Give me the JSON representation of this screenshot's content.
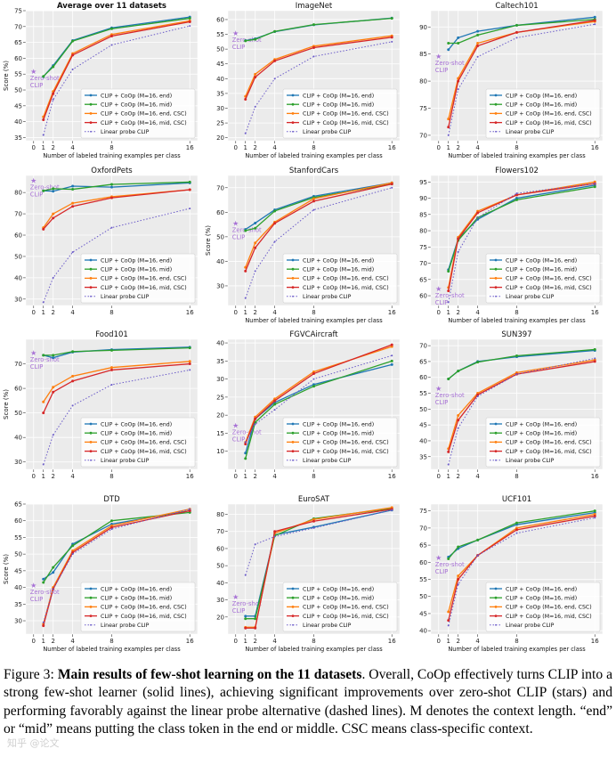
{
  "figure": {
    "caption_label": "Figure 3:",
    "caption_bold": "Main results of few-shot learning on the 11 datasets",
    "caption_rest": ". Overall, CoOp effectively turns CLIP into a strong few-shot learner (solid lines), achieving significant improvements over zero-shot CLIP (stars) and performing favorably against the linear probe alternative (dashed lines). M denotes the context length. “end” or “mid” means putting the class token in the end or middle. CSC means class-specific context.",
    "watermark": "知乎 @论文"
  },
  "colors": {
    "end": "#1f77b4",
    "mid": "#2ca02c",
    "end_csc": "#ff7f0e",
    "mid_csc": "#d62728",
    "linear": "#6b5bc9",
    "zeroshot": "#a872d6",
    "panel_bg": "#ebebeb"
  },
  "chart_data": [
    {
      "type": "line",
      "title": "Average over 11 datasets",
      "xlabel": "Number of labeled training examples per class",
      "ylabel": "Score (%)",
      "x": [
        1,
        2,
        4,
        8,
        16
      ],
      "xticks": [
        0,
        1,
        2,
        4,
        8,
        16
      ],
      "ylim": [
        34,
        75
      ],
      "yticks": [
        35,
        40,
        45,
        50,
        55,
        60,
        65,
        70,
        75
      ],
      "zero_shot": {
        "label": "Zero-shot CLIP",
        "value": 55.9
      },
      "series": [
        {
          "name": "CLIP + CoOp (M=16, end)",
          "values": [
            54.2,
            57.7,
            65.6,
            69.6,
            73.0
          ]
        },
        {
          "name": "CLIP + CoOp (M=16, mid)",
          "values": [
            54.3,
            57.3,
            65.4,
            69.3,
            72.6
          ]
        },
        {
          "name": "CLIP + CoOp (M=16, end, CSC)",
          "values": [
            41.5,
            49.5,
            61.5,
            67.5,
            71.8
          ]
        },
        {
          "name": "CLIP + CoOp (M=16, mid, CSC)",
          "values": [
            40.6,
            48.8,
            61.0,
            67.0,
            71.5
          ]
        },
        {
          "name": "Linear probe CLIP",
          "values": [
            35.8,
            47.0,
            56.5,
            64.2,
            70.2
          ]
        }
      ]
    },
    {
      "type": "line",
      "title": "ImageNet",
      "xlabel": "Number of labeled training examples per class",
      "ylabel": "",
      "x": [
        1,
        2,
        4,
        8,
        16
      ],
      "xticks": [
        0,
        1,
        2,
        4,
        8,
        16
      ],
      "ylim": [
        19,
        63
      ],
      "yticks": [
        20,
        25,
        30,
        35,
        40,
        45,
        50,
        55,
        60
      ],
      "zero_shot": {
        "label": "Zero-shot CLIP",
        "value": 55.4
      },
      "series": [
        {
          "name": "CLIP + CoOp (M=16, end)",
          "values": [
            52.9,
            53.5,
            55.9,
            58.2,
            60.5
          ]
        },
        {
          "name": "CLIP + CoOp (M=16, mid)",
          "values": [
            52.8,
            53.3,
            56.0,
            58.3,
            60.4
          ]
        },
        {
          "name": "CLIP + CoOp (M=16, end, CSC)",
          "values": [
            34.0,
            41.5,
            46.5,
            51.0,
            54.5
          ]
        },
        {
          "name": "CLIP + CoOp (M=16, mid, CSC)",
          "values": [
            33.0,
            40.5,
            46.0,
            50.5,
            54.0
          ]
        },
        {
          "name": "Linear probe CLIP",
          "values": [
            21.5,
            30.5,
            40.0,
            47.5,
            52.5
          ]
        }
      ]
    },
    {
      "type": "line",
      "title": "Caltech101",
      "xlabel": "Number of labeled training examples per class",
      "ylabel": "",
      "x": [
        1,
        2,
        4,
        8,
        16
      ],
      "xticks": [
        0,
        1,
        2,
        4,
        8,
        16
      ],
      "ylim": [
        69,
        93
      ],
      "yticks": [
        70,
        75,
        80,
        85,
        90
      ],
      "zero_shot": {
        "label": "Zero-shot CLIP",
        "value": 84.6
      },
      "series": [
        {
          "name": "CLIP + CoOp (M=16, end)",
          "values": [
            85.8,
            88.0,
            89.2,
            90.3,
            91.8
          ]
        },
        {
          "name": "CLIP + CoOp (M=16, mid)",
          "values": [
            87.0,
            87.0,
            88.5,
            90.3,
            91.4
          ]
        },
        {
          "name": "CLIP + CoOp (M=16, end, CSC)",
          "values": [
            73.0,
            80.5,
            87.0,
            89.0,
            91.0
          ]
        },
        {
          "name": "CLIP + CoOp (M=16, mid, CSC)",
          "values": [
            71.5,
            80.0,
            86.5,
            89.0,
            91.2
          ]
        },
        {
          "name": "Linear probe CLIP",
          "values": [
            70.0,
            78.5,
            84.5,
            88.0,
            90.5
          ]
        }
      ]
    },
    {
      "type": "line",
      "title": "OxfordPets",
      "xlabel": "",
      "ylabel": "",
      "x": [
        1,
        2,
        4,
        8,
        16
      ],
      "xticks": [
        0,
        1,
        2,
        4,
        8,
        16
      ],
      "ylim": [
        27,
        88
      ],
      "yticks": [
        30,
        40,
        50,
        60,
        70,
        80
      ],
      "zero_shot": {
        "label": "Zero-shot CLIP",
        "value": 85.8
      },
      "series": [
        {
          "name": "CLIP + CoOp (M=16, end)",
          "values": [
            80.8,
            80.6,
            83.0,
            82.5,
            84.5
          ]
        },
        {
          "name": "CLIP + CoOp (M=16, mid)",
          "values": [
            80.8,
            81.8,
            81.5,
            83.8,
            84.9
          ]
        },
        {
          "name": "CLIP + CoOp (M=16, end, CSC)",
          "values": [
            63.5,
            70.0,
            75.0,
            78.0,
            81.3
          ]
        },
        {
          "name": "CLIP + CoOp (M=16, mid, CSC)",
          "values": [
            62.8,
            68.0,
            73.5,
            77.5,
            81.3
          ]
        },
        {
          "name": "Linear probe CLIP",
          "values": [
            28.5,
            40.0,
            52.0,
            63.5,
            72.5
          ]
        }
      ]
    },
    {
      "type": "line",
      "title": "StanfordCars",
      "xlabel": "Number of labeled training examples per class",
      "ylabel": "Score (%)",
      "x": [
        1,
        2,
        4,
        8,
        16
      ],
      "xticks": [
        0,
        1,
        2,
        4,
        8,
        16
      ],
      "ylim": [
        22,
        75
      ],
      "yticks": [
        30,
        40,
        50,
        60,
        70
      ],
      "zero_shot": {
        "label": "Zero-shot CLIP",
        "value": 55.6
      },
      "series": [
        {
          "name": "CLIP + CoOp (M=16, end)",
          "values": [
            53.0,
            55.6,
            61.0,
            66.5,
            72.0
          ]
        },
        {
          "name": "CLIP + CoOp (M=16, mid)",
          "values": [
            52.5,
            53.5,
            60.5,
            66.0,
            71.5
          ]
        },
        {
          "name": "CLIP + CoOp (M=16, end, CSC)",
          "values": [
            37.5,
            47.5,
            56.0,
            65.5,
            72.0
          ]
        },
        {
          "name": "CLIP + CoOp (M=16, mid, CSC)",
          "values": [
            36.0,
            45.5,
            55.5,
            64.5,
            71.5
          ]
        },
        {
          "name": "Linear probe CLIP",
          "values": [
            25.0,
            36.0,
            48.0,
            61.0,
            70.0
          ]
        }
      ]
    },
    {
      "type": "line",
      "title": "Flowers102",
      "xlabel": "Number of labeled training examples per class",
      "ylabel": "",
      "x": [
        1,
        2,
        4,
        8,
        16
      ],
      "xticks": [
        0,
        1,
        2,
        4,
        8,
        16
      ],
      "ylim": [
        57,
        97
      ],
      "yticks": [
        60,
        65,
        70,
        75,
        80,
        85,
        90,
        95
      ],
      "zero_shot": {
        "label": "Zero-shot CLIP",
        "value": 62.2
      },
      "series": [
        {
          "name": "CLIP + CoOp (M=16, end)",
          "values": [
            68.0,
            77.5,
            83.5,
            90.0,
            94.0
          ]
        },
        {
          "name": "CLIP + CoOp (M=16, mid)",
          "values": [
            67.5,
            77.0,
            84.0,
            89.5,
            93.5
          ]
        },
        {
          "name": "CLIP + CoOp (M=16, end, CSC)",
          "values": [
            62.5,
            78.0,
            86.0,
            91.0,
            95.0
          ]
        },
        {
          "name": "CLIP + CoOp (M=16, mid, CSC)",
          "values": [
            61.5,
            77.5,
            85.5,
            91.0,
            94.5
          ]
        },
        {
          "name": "Linear probe CLIP",
          "values": [
            58.0,
            73.5,
            84.0,
            91.5,
            94.5
          ]
        }
      ]
    },
    {
      "type": "line",
      "title": "Food101",
      "xlabel": "",
      "ylabel": "Score (%)",
      "x": [
        1,
        2,
        4,
        8,
        16
      ],
      "xticks": [
        0,
        1,
        2,
        4,
        8,
        16
      ],
      "ylim": [
        27,
        80
      ],
      "yticks": [
        30,
        40,
        50,
        60,
        70
      ],
      "zero_shot": {
        "label": "Zero-shot CLIP",
        "value": 74.5
      },
      "series": [
        {
          "name": "CLIP + CoOp (M=16, end)",
          "values": [
            73.5,
            72.5,
            74.8,
            75.8,
            76.8
          ]
        },
        {
          "name": "CLIP + CoOp (M=16, mid)",
          "values": [
            73.5,
            73.5,
            75.0,
            75.5,
            76.5
          ]
        },
        {
          "name": "CLIP + CoOp (M=16, end, CSC)",
          "values": [
            54.5,
            60.5,
            65.0,
            68.5,
            71.0
          ]
        },
        {
          "name": "CLIP + CoOp (M=16, mid, CSC)",
          "values": [
            50.0,
            58.5,
            63.0,
            67.5,
            70.0
          ]
        },
        {
          "name": "Linear probe CLIP",
          "values": [
            29.0,
            41.0,
            53.0,
            61.5,
            67.5
          ]
        }
      ]
    },
    {
      "type": "line",
      "title": "FGVCAircraft",
      "xlabel": "",
      "ylabel": "",
      "x": [
        1,
        2,
        4,
        8,
        16
      ],
      "xticks": [
        0,
        1,
        2,
        4,
        8,
        16
      ],
      "ylim": [
        5,
        41
      ],
      "yticks": [
        10,
        15,
        20,
        25,
        30,
        35,
        40
      ],
      "zero_shot": {
        "label": "Zero-shot CLIP",
        "value": 17.2
      },
      "series": [
        {
          "name": "CLIP + CoOp (M=16, end)",
          "values": [
            9.5,
            19.0,
            23.5,
            28.5,
            34.0
          ]
        },
        {
          "name": "CLIP + CoOp (M=16, mid)",
          "values": [
            8.0,
            18.0,
            23.0,
            28.0,
            35.0
          ]
        },
        {
          "name": "CLIP + CoOp (M=16, end, CSC)",
          "values": [
            12.5,
            19.5,
            24.5,
            32.0,
            39.0
          ]
        },
        {
          "name": "CLIP + CoOp (M=16, mid, CSC)",
          "values": [
            12.0,
            19.0,
            24.0,
            31.5,
            39.5
          ]
        },
        {
          "name": "Linear probe CLIP",
          "values": [
            12.5,
            17.5,
            21.5,
            30.0,
            36.5
          ]
        }
      ]
    },
    {
      "type": "line",
      "title": "SUN397",
      "xlabel": "",
      "ylabel": "",
      "x": [
        1,
        2,
        4,
        8,
        16
      ],
      "xticks": [
        0,
        1,
        2,
        4,
        8,
        16
      ],
      "ylim": [
        31,
        72
      ],
      "yticks": [
        35,
        40,
        45,
        50,
        55,
        60,
        65,
        70
      ],
      "zero_shot": {
        "label": "Zero-shot CLIP",
        "value": 56.5
      },
      "series": [
        {
          "name": "CLIP + CoOp (M=16, end)",
          "values": [
            59.5,
            62.0,
            65.0,
            66.5,
            68.5
          ]
        },
        {
          "name": "CLIP + CoOp (M=16, mid)",
          "values": [
            59.5,
            62.0,
            64.8,
            66.8,
            68.8
          ]
        },
        {
          "name": "CLIP + CoOp (M=16, end, CSC)",
          "values": [
            37.5,
            48.0,
            55.0,
            61.5,
            65.5
          ]
        },
        {
          "name": "CLIP + CoOp (M=16, mid, CSC)",
          "values": [
            36.5,
            46.5,
            54.5,
            61.0,
            65.0
          ]
        },
        {
          "name": "Linear probe CLIP",
          "values": [
            32.5,
            44.0,
            54.0,
            61.0,
            66.0
          ]
        }
      ]
    },
    {
      "type": "line",
      "title": "DTD",
      "xlabel": "Number of labeled training examples per class",
      "ylabel": "Score (%)",
      "x": [
        1,
        2,
        4,
        8,
        16
      ],
      "xticks": [
        0,
        1,
        2,
        4,
        8,
        16
      ],
      "ylim": [
        26,
        65
      ],
      "yticks": [
        30,
        35,
        40,
        45,
        50,
        55,
        60,
        65
      ],
      "zero_shot": {
        "label": "Zero-shot CLIP",
        "value": 40.7
      },
      "series": [
        {
          "name": "CLIP + CoOp (M=16, end)",
          "values": [
            42.5,
            44.5,
            53.0,
            59.0,
            63.0
          ]
        },
        {
          "name": "CLIP + CoOp (M=16, mid)",
          "values": [
            41.5,
            46.0,
            52.5,
            60.0,
            62.5
          ]
        },
        {
          "name": "CLIP + CoOp (M=16, end, CSC)",
          "values": [
            29.0,
            40.0,
            51.0,
            58.5,
            63.5
          ]
        },
        {
          "name": "CLIP + CoOp (M=16, mid, CSC)",
          "values": [
            28.5,
            39.5,
            50.5,
            58.0,
            63.0
          ]
        },
        {
          "name": "Linear probe CLIP",
          "values": [
            29.5,
            39.5,
            50.0,
            57.5,
            63.5
          ]
        }
      ]
    },
    {
      "type": "line",
      "title": "EuroSAT",
      "xlabel": "Number of labeled training examples per class",
      "ylabel": "",
      "x": [
        1,
        2,
        4,
        8,
        16
      ],
      "xticks": [
        0,
        1,
        2,
        4,
        8,
        16
      ],
      "ylim": [
        10,
        86
      ],
      "yticks": [
        20,
        30,
        40,
        50,
        60,
        70,
        80
      ],
      "zero_shot": {
        "label": "Zero-shot CLIP",
        "value": 31.8
      },
      "series": [
        {
          "name": "CLIP + CoOp (M=16, end)",
          "values": [
            20.5,
            20.5,
            68.0,
            72.5,
            82.5
          ]
        },
        {
          "name": "CLIP + CoOp (M=16, mid)",
          "values": [
            19.0,
            19.0,
            67.5,
            77.5,
            83.5
          ]
        },
        {
          "name": "CLIP + CoOp (M=16, end, CSC)",
          "values": [
            14.0,
            14.0,
            69.0,
            77.0,
            84.0
          ]
        },
        {
          "name": "CLIP + CoOp (M=16, mid, CSC)",
          "values": [
            13.5,
            13.5,
            70.0,
            76.0,
            83.0
          ]
        },
        {
          "name": "Linear probe CLIP",
          "values": [
            44.5,
            62.5,
            67.0,
            72.0,
            82.5
          ]
        }
      ]
    },
    {
      "type": "line",
      "title": "UCF101",
      "xlabel": "Number of labeled training examples per class",
      "ylabel": "",
      "x": [
        1,
        2,
        4,
        8,
        16
      ],
      "xticks": [
        0,
        1,
        2,
        4,
        8,
        16
      ],
      "ylim": [
        39,
        77
      ],
      "yticks": [
        40,
        45,
        50,
        55,
        60,
        65,
        70,
        75
      ],
      "zero_shot": {
        "label": "Zero-shot CLIP",
        "value": 61.4
      },
      "series": [
        {
          "name": "CLIP + CoOp (M=16, end)",
          "values": [
            61.5,
            64.0,
            66.5,
            71.0,
            74.5
          ]
        },
        {
          "name": "CLIP + CoOp (M=16, mid)",
          "values": [
            61.0,
            64.5,
            66.5,
            71.5,
            75.0
          ]
        },
        {
          "name": "CLIP + CoOp (M=16, end, CSC)",
          "values": [
            45.5,
            56.0,
            62.0,
            70.0,
            74.0
          ]
        },
        {
          "name": "CLIP + CoOp (M=16, mid, CSC)",
          "values": [
            43.0,
            55.0,
            62.0,
            69.5,
            73.5
          ]
        },
        {
          "name": "Linear probe CLIP",
          "values": [
            41.5,
            53.5,
            62.0,
            68.5,
            73.0
          ]
        }
      ]
    }
  ]
}
